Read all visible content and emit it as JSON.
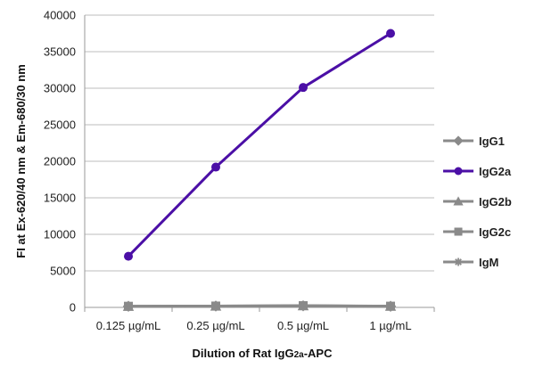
{
  "chart_data": {
    "type": "line",
    "categories": [
      "0.125 µg/mL",
      "0.25 µg/mL",
      "0.5 µg/mL",
      "1 µg/mL"
    ],
    "y_ticks": [
      0,
      5000,
      10000,
      15000,
      20000,
      25000,
      30000,
      35000,
      40000
    ],
    "ylim": [
      0,
      40000
    ],
    "ylabel": "FI at Ex-620/40 nm & Em-680/30 nm",
    "xlabel_parts": [
      "Dilution of Rat IgG",
      "2a",
      "-APC"
    ],
    "grid": "horizontal",
    "legend_position": "right",
    "series": [
      {
        "name": "IgG1",
        "values": [
          150,
          180,
          220,
          160
        ],
        "color": "#8a8a8a",
        "marker": "diamond"
      },
      {
        "name": "IgG2a",
        "values": [
          7000,
          19200,
          30100,
          37500
        ],
        "color": "#4b0fa6",
        "marker": "circle"
      },
      {
        "name": "IgG2b",
        "values": [
          140,
          170,
          210,
          150
        ],
        "color": "#8a8a8a",
        "marker": "triangle"
      },
      {
        "name": "IgG2c",
        "values": [
          160,
          190,
          240,
          170
        ],
        "color": "#8a8a8a",
        "marker": "square"
      },
      {
        "name": "IgM",
        "values": [
          130,
          160,
          200,
          140
        ],
        "color": "#8a8a8a",
        "marker": "star"
      }
    ]
  }
}
